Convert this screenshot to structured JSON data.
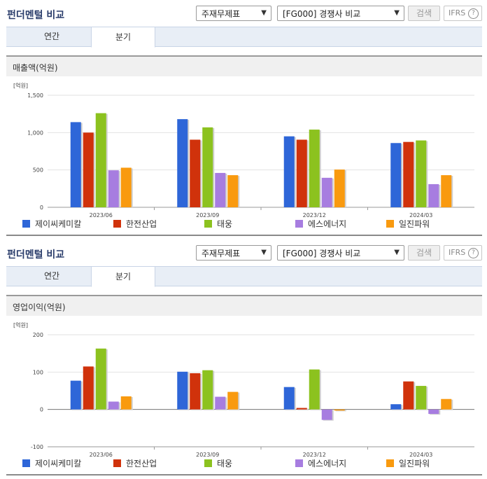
{
  "panels": [
    {
      "title": "펀더멘털 비교",
      "select_statement": "주재무제표",
      "select_compare": "[FG000] 경쟁사 비교",
      "search_label": "검색",
      "ifrs_label": "IFRS",
      "help_label": "?",
      "tabs": [
        {
          "label": "연간"
        },
        {
          "label": "분기"
        }
      ],
      "section_title": "매출액(억원)",
      "chart_data": {
        "type": "bar",
        "unit_label": "[억원]",
        "categories": [
          "2023/06",
          "2023/09",
          "2023/12",
          "2024/03"
        ],
        "ylim": [
          0,
          1500
        ],
        "ticks": [
          "1,500",
          "1,000",
          "500",
          "0"
        ],
        "tick_values": [
          1500,
          1000,
          500,
          0
        ],
        "series": [
          {
            "name": "제이씨케미칼",
            "values": [
              1140,
              1180,
              950,
              860
            ]
          },
          {
            "name": "한전산업",
            "values": [
              1000,
              905,
              905,
              875
            ]
          },
          {
            "name": "태웅",
            "values": [
              1260,
              1070,
              1040,
              895
            ]
          },
          {
            "name": "에스에너지",
            "values": [
              495,
              460,
              395,
              310
            ]
          },
          {
            "name": "일진파워",
            "values": [
              530,
              430,
              505,
              430
            ]
          }
        ],
        "grid": true,
        "legend": "bottom"
      }
    },
    {
      "title": "펀더멘털 비교",
      "select_statement": "주재무제표",
      "select_compare": "[FG000] 경쟁사 비교",
      "search_label": "검색",
      "ifrs_label": "IFRS",
      "help_label": "?",
      "tabs": [
        {
          "label": "연간"
        },
        {
          "label": "분기"
        }
      ],
      "section_title": "영업이익(억원)",
      "chart_data": {
        "type": "bar",
        "unit_label": "[억원]",
        "categories": [
          "2023/06",
          "2023/09",
          "2023/12",
          "2024/03"
        ],
        "ylim": [
          -100,
          200
        ],
        "ticks": [
          "200",
          "100",
          "0",
          "-100"
        ],
        "tick_values": [
          200,
          100,
          0,
          -100
        ],
        "series": [
          {
            "name": "제이씨케미칼",
            "values": [
              77,
              101,
              60,
              14
            ]
          },
          {
            "name": "한전산업",
            "values": [
              115,
              97,
              4,
              75
            ]
          },
          {
            "name": "태웅",
            "values": [
              163,
              105,
              107,
              63
            ]
          },
          {
            "name": "에스에너지",
            "values": [
              21,
              34,
              -28,
              -12
            ]
          },
          {
            "name": "일진파워",
            "values": [
              35,
              47,
              -3,
              28
            ]
          }
        ],
        "grid": true,
        "legend": "bottom"
      }
    }
  ],
  "colors": {
    "series": [
      "#2e66d8",
      "#d0320b",
      "#8cc21f",
      "#a77de0",
      "#f99a0f"
    ],
    "title": "#2a3d6b",
    "tab_bg": "#e8eef6"
  }
}
